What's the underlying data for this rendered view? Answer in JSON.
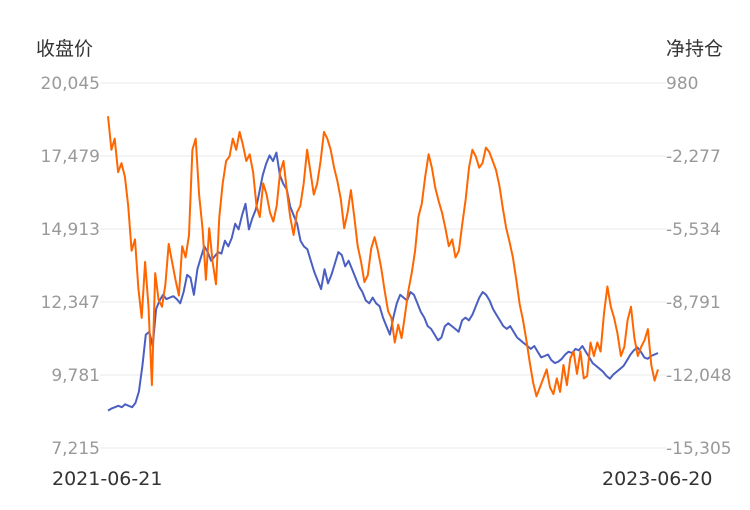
{
  "chart_data": {
    "type": "line",
    "left_axis_title": "收盘价",
    "right_axis_title": "净持仓",
    "left_ticks": [
      "20,045",
      "17,479",
      "14,913",
      "12,347",
      "9,781",
      "7,215"
    ],
    "right_ticks": [
      "980",
      "-2,277",
      "-5,534",
      "-8,791",
      "-12,048",
      "-15,305"
    ],
    "left_range": [
      7215,
      20045
    ],
    "right_range": [
      -15305,
      980
    ],
    "x_labels": [
      "2021-06-21",
      "2023-06-20"
    ],
    "grid": true,
    "legend": "none",
    "colors": {
      "close": "#4a5fc1",
      "net": "#ff6600",
      "grid": "#e8e8e8"
    },
    "series": [
      {
        "axis": "left",
        "color": "#4a5fc1",
        "values": [
          8530,
          8600,
          8650,
          8700,
          8650,
          8750,
          8700,
          8650,
          8800,
          9200,
          10100,
          11200,
          11300,
          10800,
          12100,
          12400,
          12600,
          12450,
          12500,
          12550,
          12450,
          12300,
          12700,
          13300,
          13200,
          12600,
          13500,
          13900,
          14300,
          14100,
          13800,
          13950,
          14100,
          14050,
          14500,
          14300,
          14600,
          15100,
          14900,
          15400,
          15800,
          14900,
          15300,
          15600,
          16200,
          16800,
          17200,
          17500,
          17300,
          17600,
          16800,
          16500,
          16300,
          15700,
          15400,
          15100,
          14500,
          14300,
          14200,
          13800,
          13400,
          13100,
          12800,
          13500,
          13000,
          13300,
          13700,
          14100,
          14000,
          13600,
          13800,
          13500,
          13200,
          12900,
          12700,
          12400,
          12300,
          12500,
          12300,
          12200,
          11800,
          11500,
          11200,
          11800,
          12300,
          12600,
          12500,
          12400,
          12700,
          12600,
          12300,
          12000,
          11800,
          11500,
          11400,
          11200,
          11000,
          11100,
          11500,
          11600,
          11500,
          11400,
          11300,
          11700,
          11800,
          11700,
          11900,
          12200,
          12500,
          12700,
          12600,
          12400,
          12100,
          11900,
          11700,
          11500,
          11400,
          11500,
          11300,
          11100,
          11000,
          10900,
          10800,
          10700,
          10800,
          10600,
          10400,
          10450,
          10500,
          10300,
          10200,
          10250,
          10350,
          10500,
          10600,
          10550,
          10700,
          10650,
          10800,
          10600,
          10400,
          10200,
          10100,
          10000,
          9900,
          9750,
          9650,
          9800,
          9900,
          10000,
          10100,
          10300,
          10500,
          10650,
          10750,
          10600,
          10400,
          10350,
          10450,
          10500,
          10550
        ]
      },
      {
        "axis": "right",
        "color": "#ff6600",
        "values": [
          -500,
          -2000,
          -1500,
          -3000,
          -2600,
          -3200,
          -4500,
          -6500,
          -6000,
          -8200,
          -9500,
          -7000,
          -9000,
          -12500,
          -7500,
          -8700,
          -9000,
          -8000,
          -6200,
          -7000,
          -7800,
          -8500,
          -6300,
          -6800,
          -5800,
          -2000,
          -1500,
          -4000,
          -5500,
          -7800,
          -5500,
          -7000,
          -8000,
          -5000,
          -3500,
          -2500,
          -2300,
          -1500,
          -2000,
          -1200,
          -1800,
          -2500,
          -2200,
          -3000,
          -4500,
          -5000,
          -3500,
          -4000,
          -4800,
          -5200,
          -4500,
          -3000,
          -2500,
          -3800,
          -5000,
          -5800,
          -4800,
          -4500,
          -3500,
          -2000,
          -3000,
          -4000,
          -3500,
          -2500,
          -1200,
          -1500,
          -2000,
          -2800,
          -3400,
          -4200,
          -5500,
          -4800,
          -3800,
          -5000,
          -6300,
          -7000,
          -7900,
          -7600,
          -6400,
          -5900,
          -6500,
          -7300,
          -8300,
          -9200,
          -9500,
          -10600,
          -9800,
          -10400,
          -9400,
          -8300,
          -7500,
          -6500,
          -5000,
          -4400,
          -3200,
          -2200,
          -2800,
          -3700,
          -4300,
          -4800,
          -5500,
          -6300,
          -6000,
          -6800,
          -6500,
          -5300,
          -4200,
          -2800,
          -2000,
          -2300,
          -2800,
          -2600,
          -1900,
          -2100,
          -2500,
          -2900,
          -3600,
          -4600,
          -5500,
          -6100,
          -6800,
          -7800,
          -8900,
          -9600,
          -10500,
          -11500,
          -12400,
          -13000,
          -12600,
          -12200,
          -11800,
          -12600,
          -12900,
          -12200,
          -12800,
          -11600,
          -12500,
          -11300,
          -11000,
          -12000,
          -11000,
          -12200,
          -12100,
          -10600,
          -11200,
          -10600,
          -11000,
          -9300,
          -8100,
          -9000,
          -9500,
          -10200,
          -11200,
          -10800,
          -9600,
          -9000,
          -10400,
          -11200,
          -10800,
          -10500,
          -10000,
          -11600,
          -12300,
          -11800
        ]
      }
    ]
  }
}
